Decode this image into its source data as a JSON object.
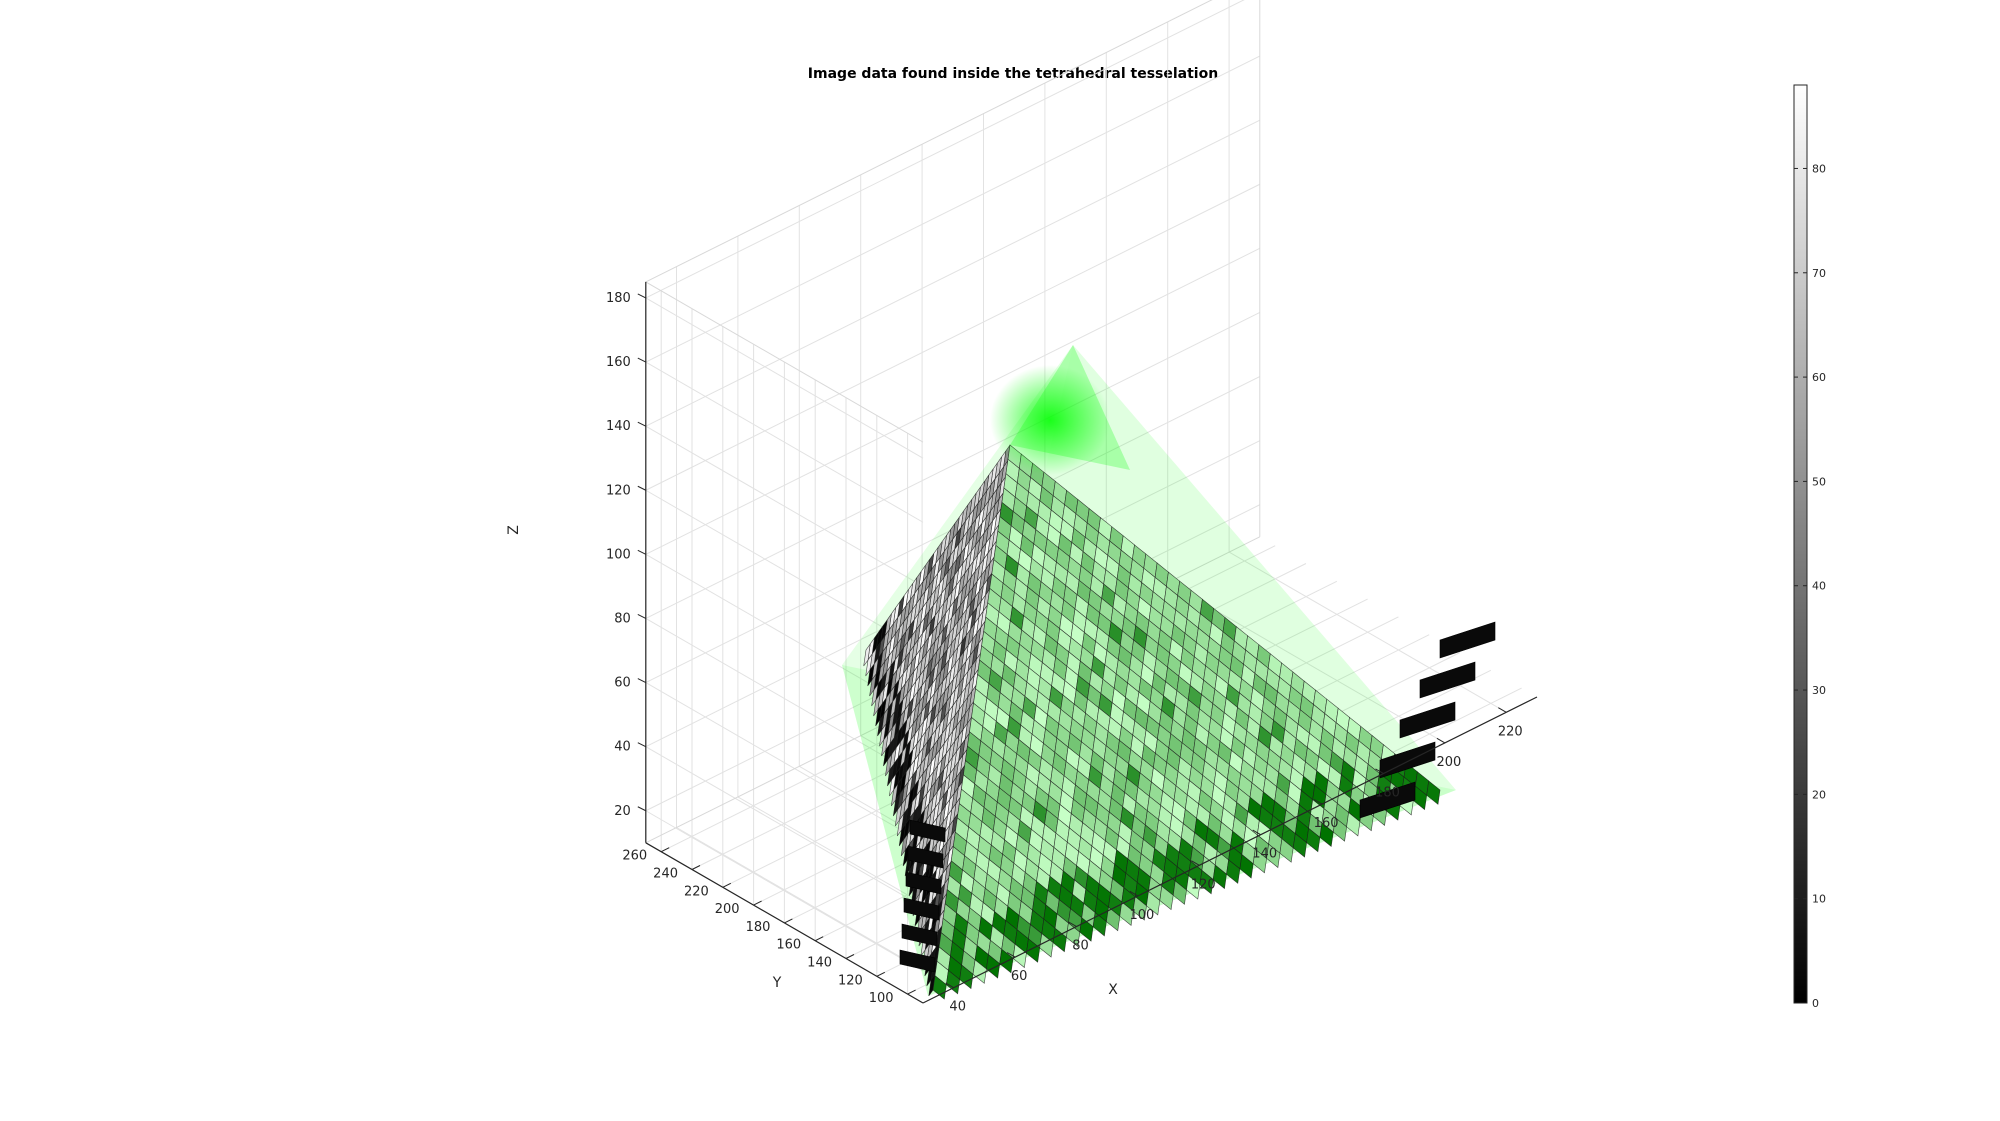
{
  "chart_data": {
    "type": "voxel-3d",
    "title": "Image data found inside the tetrahedral tesselation",
    "xlabel": "X",
    "ylabel": "Y",
    "zlabel": "Z",
    "x_ticks": [
      40,
      60,
      80,
      100,
      120,
      140,
      160,
      180,
      200,
      220
    ],
    "y_ticks": [
      100,
      120,
      140,
      160,
      180,
      200,
      220,
      240,
      260
    ],
    "z_ticks": [
      20,
      40,
      60,
      80,
      100,
      120,
      140,
      160,
      180
    ],
    "xlim": [
      30,
      230
    ],
    "ylim": [
      90,
      270
    ],
    "zlim": [
      10,
      185
    ],
    "grid": true,
    "colormap": "gray",
    "colorbar": {
      "location": "right",
      "range": [
        0,
        88
      ],
      "ticks": [
        0,
        10,
        20,
        30,
        40,
        50,
        60,
        70,
        80
      ]
    },
    "tessellation_color": "#00ff00"
  }
}
